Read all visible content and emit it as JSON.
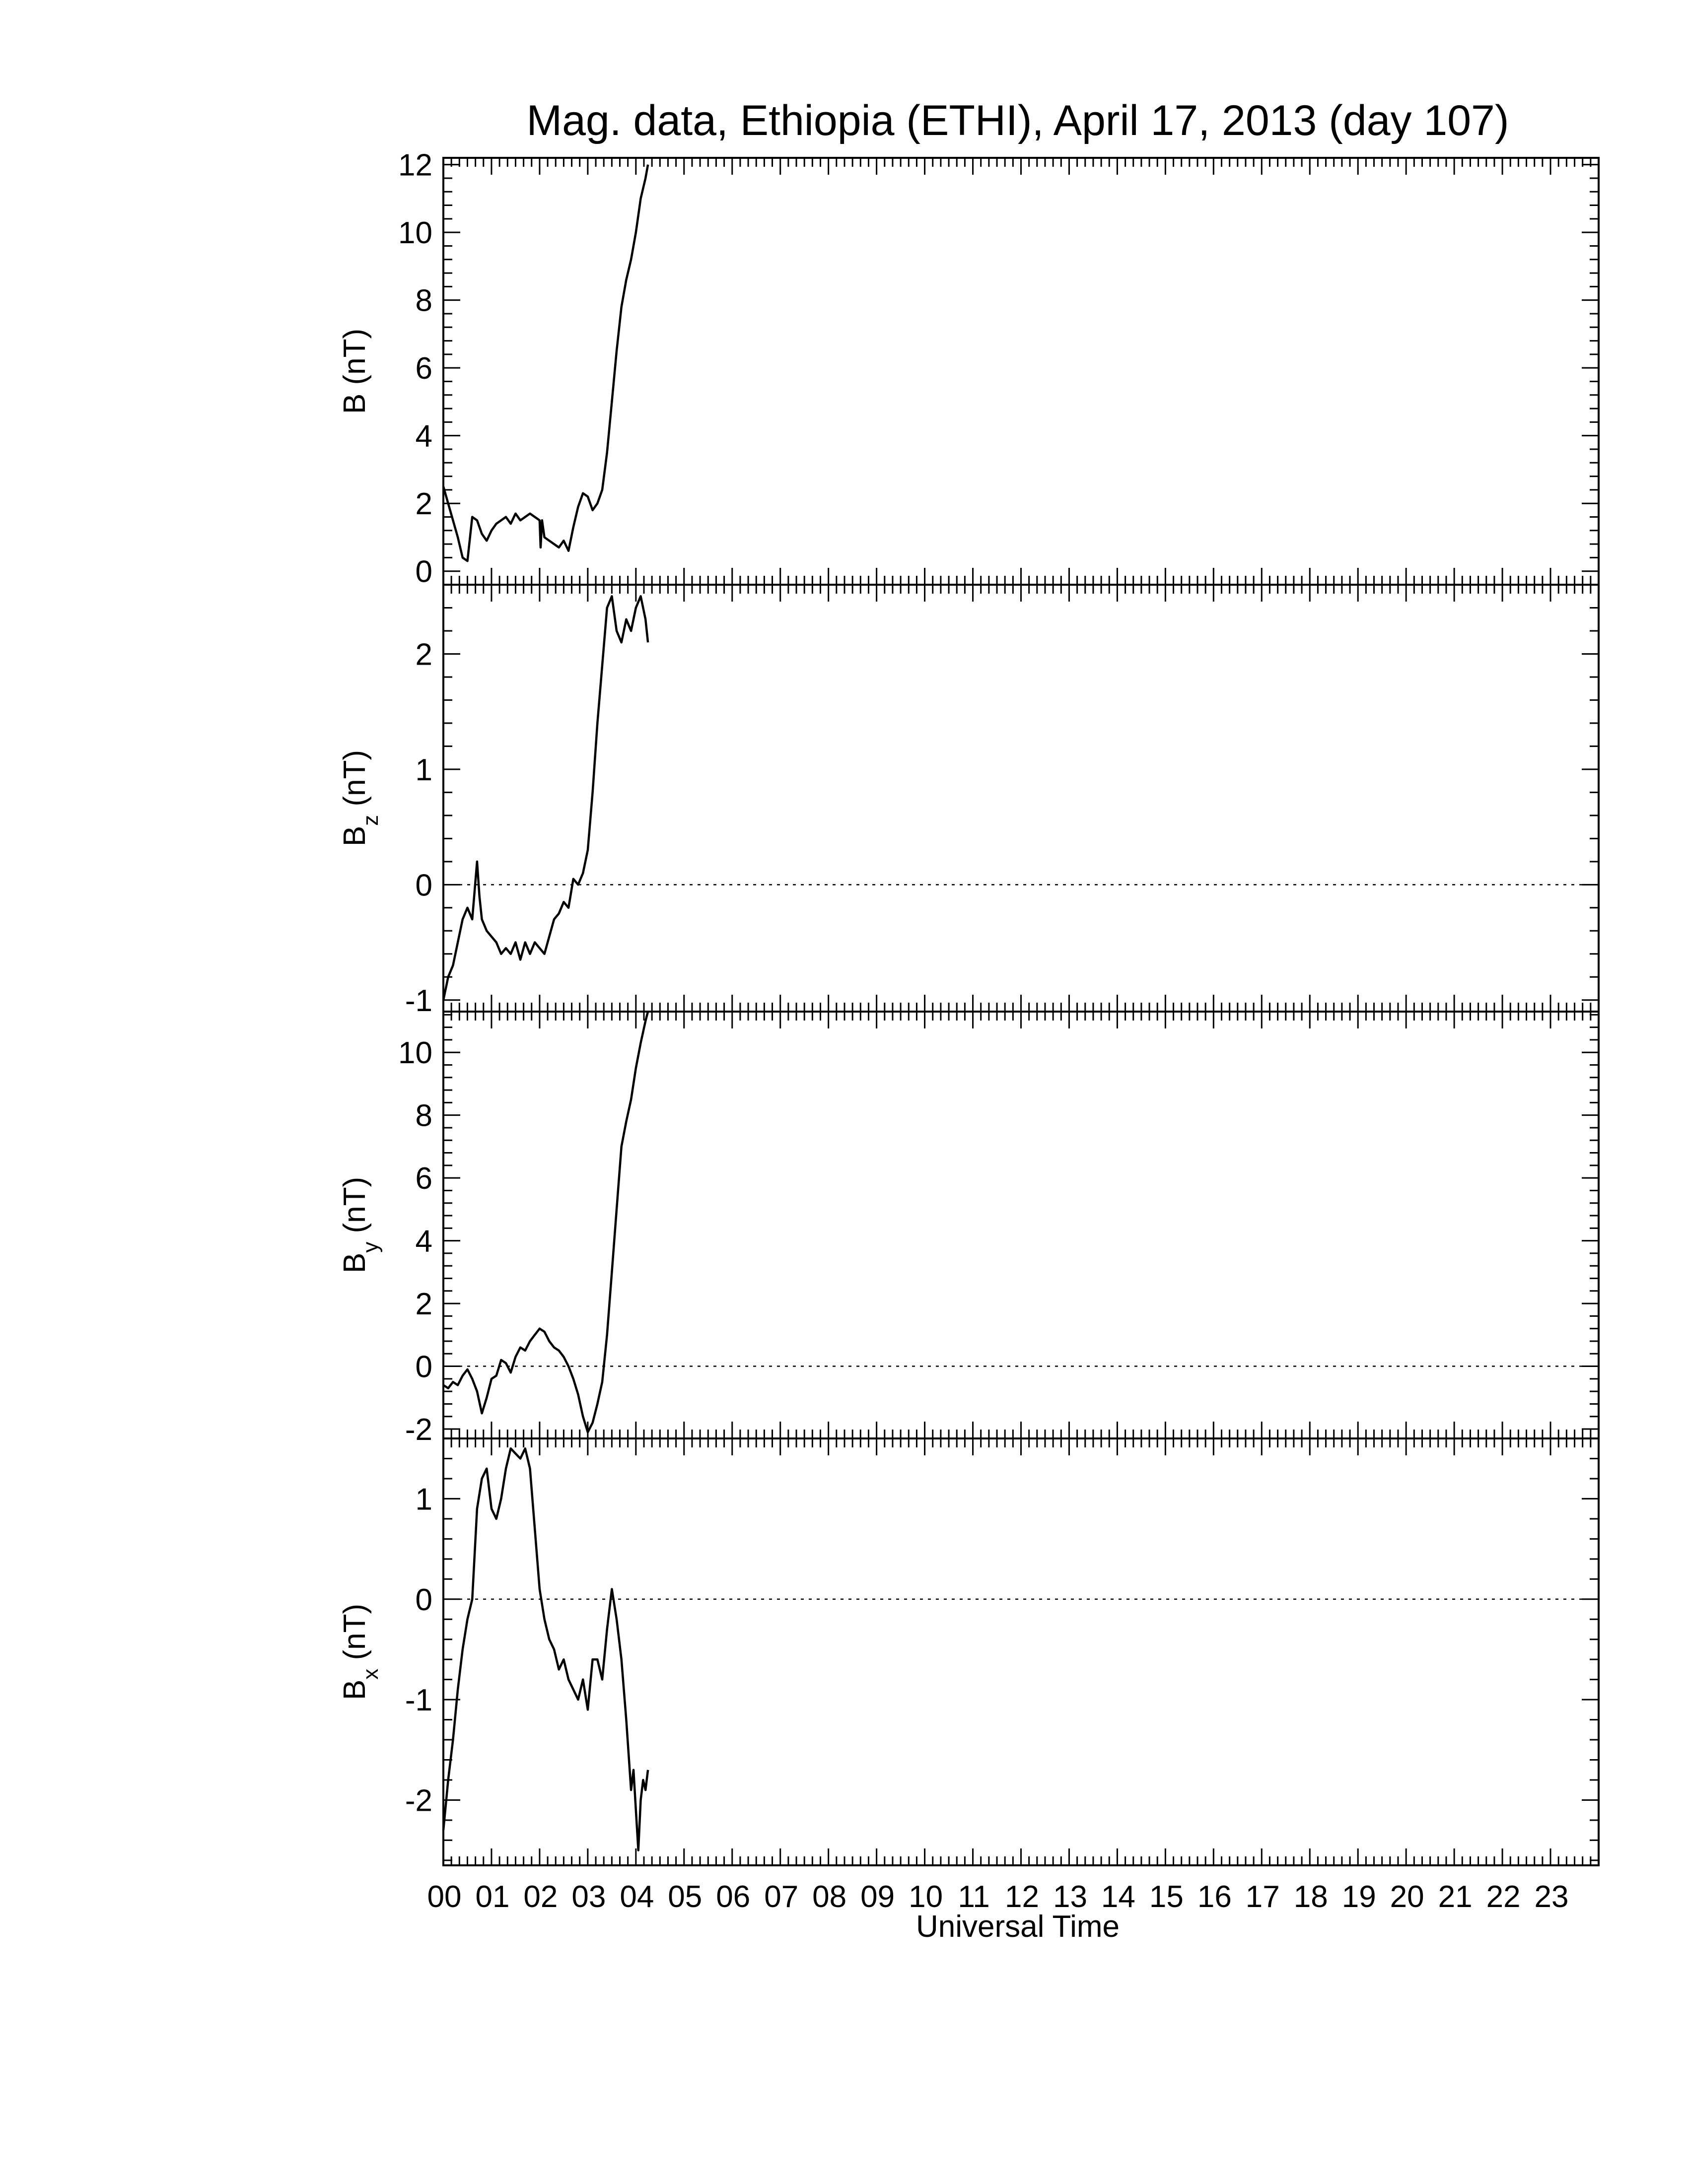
{
  "chart_data": {
    "type": "line",
    "title": "Mag. data, Ethiopia (ETHI), April 17, 2013 (day 107)",
    "xlabel": "Universal Time",
    "x_unit": "hour UT",
    "xlim": [
      0,
      24
    ],
    "x_tick_labels": [
      "00",
      "01",
      "02",
      "03",
      "04",
      "05",
      "06",
      "07",
      "08",
      "09",
      "10",
      "11",
      "12",
      "13",
      "14",
      "15",
      "16",
      "17",
      "18",
      "19",
      "20",
      "21",
      "22",
      "23"
    ],
    "panels": [
      {
        "id": "B",
        "ylabel": "B (nT)",
        "ylabel_main": "B",
        "ylabel_sub": "",
        "ylabel_unit": " (nT)",
        "ylim": [
          -0.4,
          12.2
        ],
        "yticks": [
          0,
          2,
          4,
          6,
          8,
          10,
          12
        ],
        "y_tick_labels": [
          "0",
          "2",
          "4",
          "6",
          "8",
          "10",
          "12"
        ],
        "zero_line": false,
        "x": [
          0,
          0.1,
          0.2,
          0.3,
          0.4,
          0.5,
          0.6,
          0.7,
          0.8,
          0.9,
          1.0,
          1.1,
          1.2,
          1.3,
          1.4,
          1.5,
          1.6,
          1.7,
          1.8,
          1.9,
          2.0,
          2.02,
          2.05,
          2.1,
          2.2,
          2.3,
          2.4,
          2.5,
          2.6,
          2.7,
          2.8,
          2.9,
          3.0,
          3.1,
          3.2,
          3.3,
          3.4,
          3.5,
          3.6,
          3.7,
          3.8,
          3.9,
          4.0,
          4.1,
          4.2,
          4.25
        ],
        "y": [
          2.5,
          2.0,
          1.5,
          1.0,
          0.4,
          0.3,
          1.6,
          1.5,
          1.1,
          0.9,
          1.2,
          1.4,
          1.5,
          1.6,
          1.4,
          1.7,
          1.5,
          1.6,
          1.7,
          1.6,
          1.5,
          0.7,
          1.5,
          1.0,
          0.9,
          0.8,
          0.7,
          0.9,
          0.6,
          1.3,
          1.9,
          2.3,
          2.2,
          1.8,
          2.0,
          2.4,
          3.5,
          5.0,
          6.5,
          7.8,
          8.6,
          9.2,
          10.0,
          11.0,
          11.6,
          12.0
        ]
      },
      {
        "id": "Bz",
        "ylabel": "Bz (nT)",
        "ylabel_main": "B",
        "ylabel_sub": "z",
        "ylabel_unit": " (nT)",
        "ylim": [
          -1.1,
          2.6
        ],
        "yticks": [
          -1,
          0,
          1,
          2
        ],
        "y_tick_labels": [
          "-1",
          "0",
          "1",
          "2"
        ],
        "zero_line": true,
        "x": [
          0,
          0.1,
          0.2,
          0.3,
          0.4,
          0.5,
          0.6,
          0.7,
          0.75,
          0.8,
          0.9,
          1.0,
          1.1,
          1.2,
          1.3,
          1.4,
          1.5,
          1.6,
          1.7,
          1.8,
          1.9,
          2.0,
          2.1,
          2.2,
          2.3,
          2.4,
          2.5,
          2.6,
          2.7,
          2.8,
          2.9,
          3.0,
          3.1,
          3.2,
          3.3,
          3.4,
          3.5,
          3.6,
          3.7,
          3.8,
          3.9,
          4.0,
          4.1,
          4.2,
          4.25
        ],
        "y": [
          -1.0,
          -0.8,
          -0.7,
          -0.5,
          -0.3,
          -0.2,
          -0.3,
          0.2,
          -0.1,
          -0.3,
          -0.4,
          -0.45,
          -0.5,
          -0.6,
          -0.55,
          -0.6,
          -0.5,
          -0.65,
          -0.5,
          -0.6,
          -0.5,
          -0.55,
          -0.6,
          -0.45,
          -0.3,
          -0.25,
          -0.15,
          -0.2,
          0.05,
          0.0,
          0.1,
          0.3,
          0.8,
          1.4,
          1.9,
          2.4,
          2.5,
          2.2,
          2.1,
          2.3,
          2.2,
          2.4,
          2.5,
          2.3,
          2.1
        ]
      },
      {
        "id": "By",
        "ylabel": "By (nT)",
        "ylabel_main": "B",
        "ylabel_sub": "y",
        "ylabel_unit": " (nT)",
        "ylim": [
          -2.3,
          11.3
        ],
        "yticks": [
          -2,
          0,
          2,
          4,
          6,
          8,
          10
        ],
        "y_tick_labels": [
          "-2",
          "0",
          "2",
          "4",
          "6",
          "8",
          "10"
        ],
        "zero_line": true,
        "x": [
          0,
          0.1,
          0.2,
          0.3,
          0.4,
          0.5,
          0.6,
          0.7,
          0.8,
          0.9,
          1.0,
          1.1,
          1.2,
          1.3,
          1.4,
          1.5,
          1.6,
          1.7,
          1.8,
          1.9,
          2.0,
          2.1,
          2.2,
          2.3,
          2.4,
          2.5,
          2.6,
          2.7,
          2.8,
          2.9,
          3.0,
          3.1,
          3.2,
          3.3,
          3.4,
          3.5,
          3.6,
          3.7,
          3.8,
          3.9,
          4.0,
          4.1,
          4.2,
          4.25
        ],
        "y": [
          -0.6,
          -0.7,
          -0.5,
          -0.6,
          -0.3,
          -0.1,
          -0.4,
          -0.8,
          -1.5,
          -1.0,
          -0.4,
          -0.3,
          0.2,
          0.1,
          -0.2,
          0.3,
          0.6,
          0.5,
          0.8,
          1.0,
          1.2,
          1.1,
          0.8,
          0.6,
          0.5,
          0.3,
          0.0,
          -0.4,
          -0.9,
          -1.6,
          -2.1,
          -1.8,
          -1.2,
          -0.5,
          1.0,
          3.0,
          5.0,
          7.0,
          7.8,
          8.5,
          9.5,
          10.3,
          11.0,
          11.3
        ]
      },
      {
        "id": "Bx",
        "ylabel": "Bx (nT)",
        "ylabel_main": "B",
        "ylabel_sub": "x",
        "ylabel_unit": " (nT)",
        "ylim": [
          -2.65,
          1.6
        ],
        "yticks": [
          -2,
          -1,
          0,
          1
        ],
        "y_tick_labels": [
          "-2",
          "-1",
          "0",
          "1"
        ],
        "zero_line": true,
        "x": [
          0,
          0.1,
          0.2,
          0.3,
          0.4,
          0.5,
          0.6,
          0.7,
          0.8,
          0.9,
          1.0,
          1.1,
          1.2,
          1.3,
          1.4,
          1.5,
          1.6,
          1.7,
          1.8,
          1.9,
          2.0,
          2.1,
          2.2,
          2.3,
          2.4,
          2.5,
          2.6,
          2.7,
          2.8,
          2.9,
          3.0,
          3.1,
          3.2,
          3.3,
          3.4,
          3.5,
          3.6,
          3.7,
          3.8,
          3.9,
          3.95,
          4.0,
          4.05,
          4.1,
          4.15,
          4.2,
          4.25
        ],
        "y": [
          -2.3,
          -1.8,
          -1.4,
          -0.9,
          -0.5,
          -0.2,
          0.0,
          0.9,
          1.2,
          1.3,
          0.9,
          0.8,
          1.0,
          1.3,
          1.5,
          1.45,
          1.4,
          1.5,
          1.3,
          0.7,
          0.1,
          -0.2,
          -0.4,
          -0.5,
          -0.7,
          -0.6,
          -0.8,
          -0.9,
          -1.0,
          -0.8,
          -1.1,
          -0.6,
          -0.6,
          -0.8,
          -0.3,
          0.1,
          -0.2,
          -0.6,
          -1.2,
          -1.9,
          -1.7,
          -2.1,
          -2.5,
          -2.0,
          -1.8,
          -1.9,
          -1.7
        ]
      }
    ]
  }
}
